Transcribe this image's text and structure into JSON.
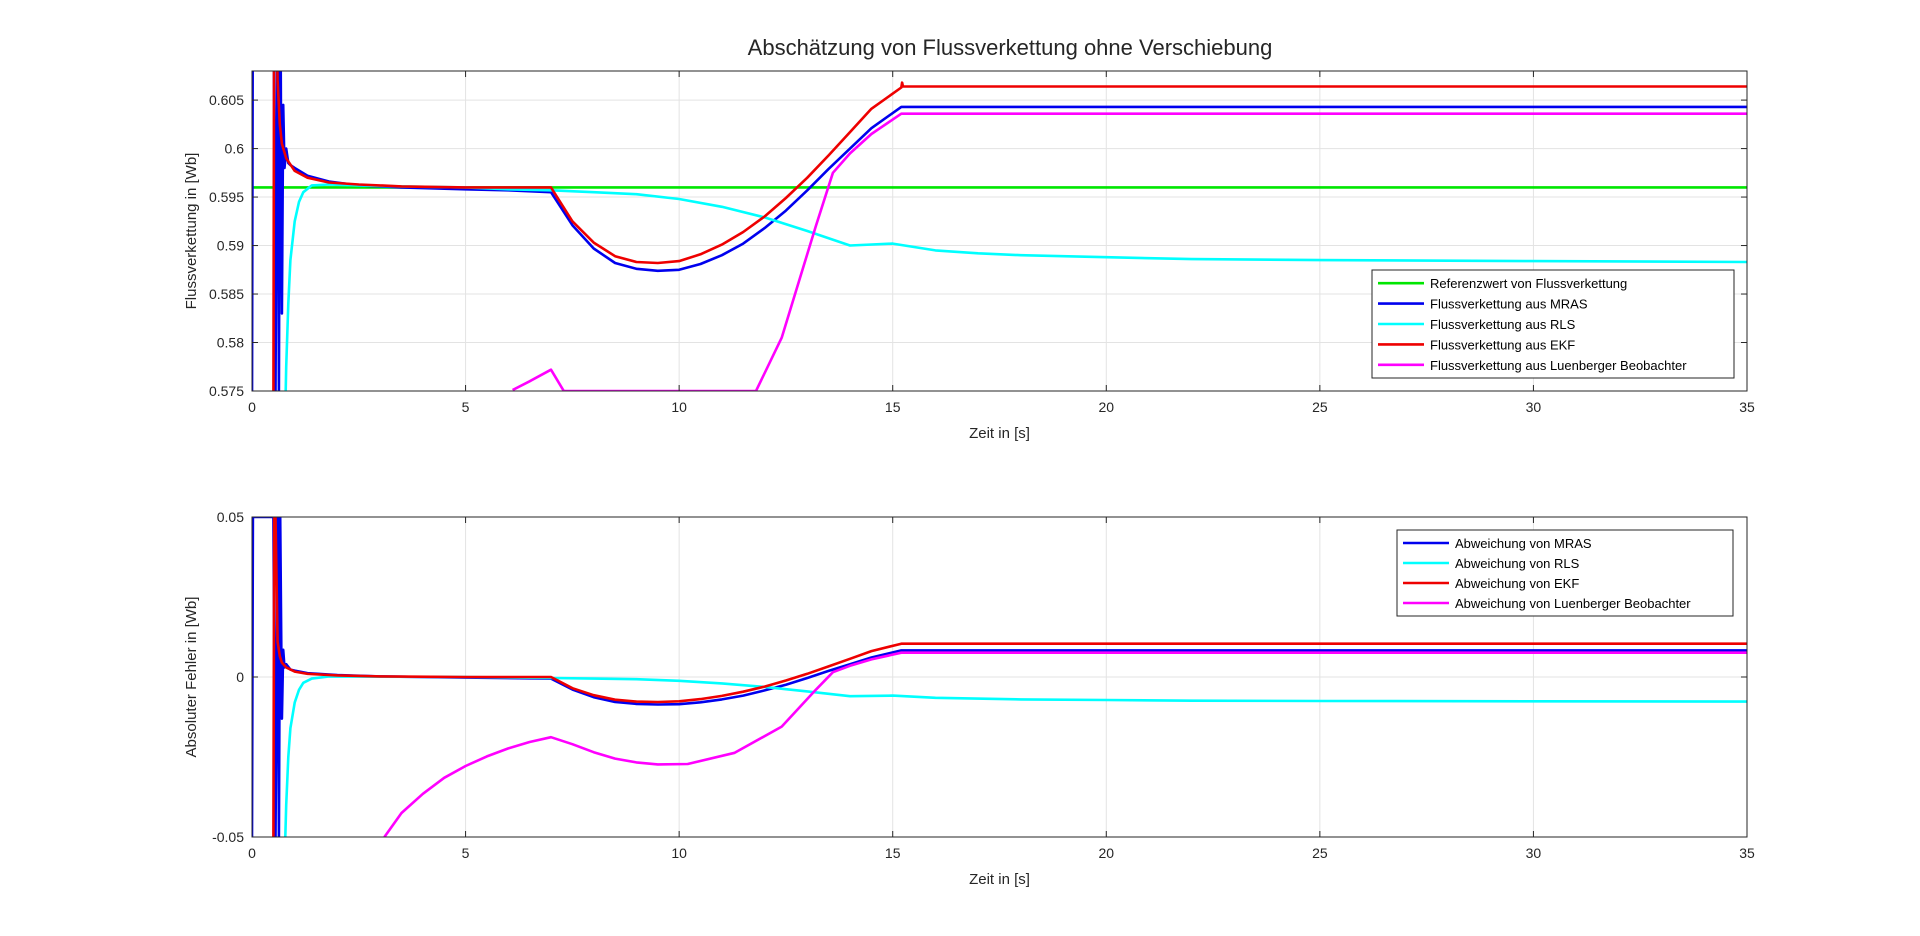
{
  "figure": {
    "title": "Abschätzung von Flussverkettung ohne Verschiebung",
    "background": "#ffffff"
  },
  "chart_data": [
    {
      "type": "line",
      "title": "Abschätzung von Flussverkettung ohne Verschiebung",
      "xlabel": "Zeit in [s]",
      "ylabel": "Flussverkettung in [Wb]",
      "xlim": [
        0,
        35
      ],
      "ylim": [
        0.575,
        0.608
      ],
      "xticks": [
        0,
        5,
        10,
        15,
        20,
        25,
        30,
        35
      ],
      "yticks": [
        0.575,
        0.58,
        0.585,
        0.59,
        0.595,
        0.6,
        0.605
      ],
      "ytick_labels": [
        "0.575",
        "0.58",
        "0.585",
        "0.59",
        "0.595",
        "0.6",
        "0.605"
      ],
      "grid": true,
      "legend": "bottom-right",
      "series": [
        {
          "name": "Referenzwert von Flussverkettung",
          "color": "#00e600",
          "x": [
            0,
            35
          ],
          "y": [
            0.596,
            0.596
          ]
        },
        {
          "name": "Flussverkettung aus MRAS",
          "color": "#0000ee",
          "x": [
            0,
            0.02,
            0.5,
            0.55,
            0.6,
            0.63,
            0.66,
            0.7,
            0.73,
            0.76,
            0.8,
            0.85,
            0.9,
            1.0,
            1.3,
            1.8,
            2.5,
            3.5,
            5,
            6,
            7,
            7.5,
            8,
            8.5,
            9,
            9.5,
            10,
            10.5,
            11,
            11.5,
            12,
            12.5,
            13,
            13.5,
            14,
            14.5,
            15.2,
            15.25,
            35
          ],
          "y": [
            0.573,
            0.62,
            0.62,
            0.575,
            0.62,
            0.575,
            0.62,
            0.583,
            0.6045,
            0.598,
            0.6,
            0.5985,
            0.5983,
            0.598,
            0.5972,
            0.5966,
            0.5962,
            0.596,
            0.5958,
            0.5957,
            0.5955,
            0.5921,
            0.5897,
            0.5882,
            0.5876,
            0.5874,
            0.5875,
            0.5881,
            0.589,
            0.5902,
            0.5918,
            0.5936,
            0.5957,
            0.5979,
            0.6,
            0.6021,
            0.6043,
            0.6043,
            0.6043
          ]
        },
        {
          "name": "Flussverkettung aus RLS",
          "color": "#00ffff",
          "x": [
            0.78,
            0.8,
            0.85,
            0.9,
            1.0,
            1.1,
            1.2,
            1.4,
            1.8,
            2.5,
            3.5,
            5,
            6,
            7,
            8,
            9,
            10,
            11,
            12,
            13,
            14,
            15,
            16,
            17,
            18,
            20,
            22,
            25,
            30,
            35
          ],
          "y": [
            0.573,
            0.5775,
            0.584,
            0.5885,
            0.5925,
            0.5945,
            0.5955,
            0.5962,
            0.5963,
            0.5962,
            0.5961,
            0.596,
            0.5958,
            0.5957,
            0.5955,
            0.5953,
            0.5948,
            0.594,
            0.5929,
            0.5915,
            0.59,
            0.5902,
            0.5895,
            0.5892,
            0.589,
            0.5888,
            0.5886,
            0.5885,
            0.5884,
            0.5883
          ]
        },
        {
          "name": "Flussverkettung aus EKF",
          "color": "#ee0000",
          "x": [
            0.5,
            0.52,
            0.55,
            0.6,
            0.65,
            0.7,
            0.8,
            1.0,
            1.3,
            1.8,
            2.5,
            3.5,
            5,
            6,
            7,
            7.5,
            8,
            8.5,
            9,
            9.5,
            10,
            10.5,
            11,
            11.5,
            12,
            12.5,
            13,
            13.5,
            14,
            14.5,
            15.2,
            15.22,
            15.24,
            35
          ],
          "y": [
            0.573,
            0.62,
            0.62,
            0.607,
            0.6025,
            0.6005,
            0.599,
            0.5977,
            0.597,
            0.5965,
            0.5963,
            0.5961,
            0.596,
            0.596,
            0.596,
            0.5925,
            0.5903,
            0.5889,
            0.5883,
            0.5882,
            0.5884,
            0.5891,
            0.5901,
            0.5914,
            0.593,
            0.5949,
            0.597,
            0.5993,
            0.6017,
            0.6041,
            0.6063,
            0.6068,
            0.6064,
            0.6064
          ]
        },
        {
          "name": "Flussverkettung aus Luenberger Beobachter",
          "color": "#ff00ff",
          "x": [
            6.1,
            6.5,
            7.0,
            7.3,
            11.8,
            12.4,
            13.2,
            13.6,
            14.0,
            14.5,
            15.2,
            35
          ],
          "y": [
            0.5751,
            0.576,
            0.5772,
            0.575,
            0.575,
            0.5805,
            0.592,
            0.5975,
            0.5995,
            0.6015,
            0.6036,
            0.6036
          ]
        }
      ]
    },
    {
      "type": "line",
      "xlabel": "Zeit in [s]",
      "ylabel": "Absoluter Fehler in [Wb]",
      "xlim": [
        0,
        35
      ],
      "ylim": [
        -0.05,
        0.05
      ],
      "xticks": [
        0,
        5,
        10,
        15,
        20,
        25,
        30,
        35
      ],
      "yticks": [
        -0.05,
        0,
        0.05
      ],
      "ytick_labels": [
        "-0.05",
        "0",
        "0.05"
      ],
      "grid": true,
      "legend": "top-right",
      "series": [
        {
          "name": "Abweichung von MRAS",
          "color": "#0000ee",
          "x": [
            0,
            0.02,
            0.5,
            0.55,
            0.6,
            0.63,
            0.66,
            0.7,
            0.73,
            0.76,
            0.8,
            0.9,
            1.0,
            1.3,
            2,
            3,
            5,
            7,
            7.5,
            8,
            8.5,
            9,
            9.5,
            10,
            10.5,
            11,
            11.5,
            12,
            12.5,
            13,
            13.5,
            14,
            14.5,
            15.2,
            35
          ],
          "y": [
            -0.05,
            0.05,
            0.05,
            -0.05,
            0.05,
            -0.05,
            0.05,
            -0.013,
            0.0085,
            0.003,
            0.004,
            0.0023,
            0.002,
            0.0012,
            0.0006,
            0.0002,
            -0.0002,
            -0.0005,
            -0.0039,
            -0.0063,
            -0.0078,
            -0.0084,
            -0.0086,
            -0.0085,
            -0.0079,
            -0.007,
            -0.0058,
            -0.0042,
            -0.0024,
            -0.0003,
            0.0019,
            0.004,
            0.0061,
            0.0083,
            0.0083
          ]
        },
        {
          "name": "Abweichung von RLS",
          "color": "#00ffff",
          "x": [
            0.78,
            0.8,
            0.85,
            0.9,
            1.0,
            1.1,
            1.2,
            1.4,
            1.8,
            3,
            5,
            7,
            8,
            9,
            10,
            11,
            12,
            13,
            14,
            15,
            16,
            18,
            20,
            22,
            25,
            30,
            35
          ],
          "y": [
            -0.05,
            -0.04,
            -0.025,
            -0.016,
            -0.008,
            -0.004,
            -0.0018,
            -0.0005,
            0.0002,
            0.0001,
            0,
            -0.0003,
            -0.0005,
            -0.0007,
            -0.0012,
            -0.002,
            -0.0031,
            -0.0045,
            -0.006,
            -0.0058,
            -0.0065,
            -0.007,
            -0.0072,
            -0.0074,
            -0.0075,
            -0.0076,
            -0.0077
          ]
        },
        {
          "name": "Abweichung von EKF",
          "color": "#ee0000",
          "x": [
            0.5,
            0.52,
            0.55,
            0.6,
            0.65,
            0.7,
            0.8,
            1.0,
            1.3,
            2,
            3,
            5,
            7,
            7.5,
            8,
            8.5,
            9,
            9.5,
            10,
            10.5,
            11,
            11.5,
            12,
            12.5,
            13,
            13.5,
            14,
            14.5,
            15.2,
            35
          ],
          "y": [
            -0.05,
            0.05,
            0.05,
            0.011,
            0.0065,
            0.0045,
            0.003,
            0.0017,
            0.001,
            0.0005,
            0.0002,
            0,
            0,
            -0.0035,
            -0.0057,
            -0.0071,
            -0.0077,
            -0.0078,
            -0.0076,
            -0.0069,
            -0.0059,
            -0.0046,
            -0.003,
            -0.0011,
            0.001,
            0.0033,
            0.0057,
            0.0081,
            0.0104,
            0.0104
          ]
        },
        {
          "name": "Abweichung von Luenberger Beobachter",
          "color": "#ff00ff",
          "x": [
            3.1,
            3.5,
            4.0,
            4.5,
            5.0,
            5.5,
            6.0,
            6.5,
            7.0,
            7.5,
            8.0,
            8.5,
            9.0,
            9.5,
            10.2,
            11.3,
            12.4,
            13.2,
            13.6,
            14.0,
            14.5,
            15.2,
            35
          ],
          "y": [
            -0.05,
            -0.0425,
            -0.0365,
            -0.0315,
            -0.0278,
            -0.0248,
            -0.0223,
            -0.0203,
            -0.0188,
            -0.021,
            -0.0235,
            -0.0255,
            -0.0267,
            -0.0273,
            -0.0272,
            -0.0237,
            -0.0155,
            -0.004,
            0.0015,
            0.0035,
            0.0055,
            0.0076,
            0.0076
          ]
        }
      ]
    }
  ]
}
